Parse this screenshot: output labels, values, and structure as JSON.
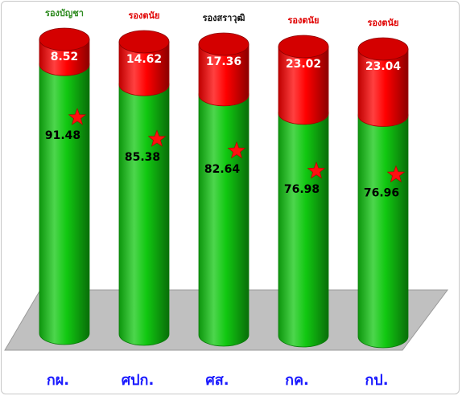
{
  "chart_data": {
    "type": "bar",
    "stacked": true,
    "orientation": "vertical",
    "categories": [
      "กผ.",
      "ศปก.",
      "ศส.",
      "กค.",
      "กป."
    ],
    "category_headers": [
      "รองบัญชา",
      "รองตนัย",
      "รองสราวุฒิ",
      "รองตนัย",
      "รองตนัย"
    ],
    "category_header_colors": [
      "#2e8b20",
      "#e00000",
      "#111111",
      "#e00000",
      "#e00000"
    ],
    "series": [
      {
        "values": [
          91.48,
          85.38,
          82.64,
          76.98,
          76.96
        ],
        "color": "#11c811"
      },
      {
        "values": [
          8.52,
          14.62,
          17.36,
          23.02,
          23.04
        ],
        "color": "#ff0000"
      }
    ],
    "marker": {
      "shape": "star",
      "color": "#ff1010"
    },
    "ylim": [
      0,
      100
    ],
    "legend": "none",
    "grid": false,
    "title": "",
    "xlabel": "",
    "ylabel": ""
  },
  "colors": {
    "floor": "#c0c0c0",
    "category_label": "#1a1aff",
    "green_value_label": "#000000",
    "red_value_label": "#ffffff"
  }
}
